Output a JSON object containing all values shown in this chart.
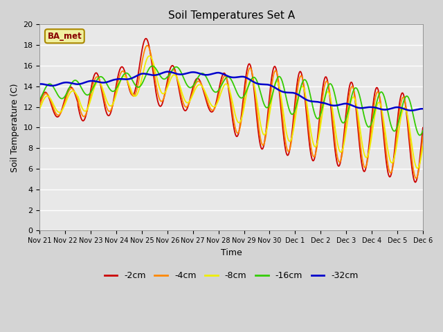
{
  "title": "Soil Temperatures Set A",
  "xlabel": "Time",
  "ylabel": "Soil Temperature (C)",
  "ylim": [
    0,
    20
  ],
  "yticks": [
    0,
    2,
    4,
    6,
    8,
    10,
    12,
    14,
    16,
    18,
    20
  ],
  "fig_bg_color": "#d4d4d4",
  "plot_bg_color": "#e8e8e8",
  "label_box_text": "BA_met",
  "series_colors": {
    "-2cm": "#cc0000",
    "-4cm": "#ff8800",
    "-8cm": "#eeee00",
    "-16cm": "#33cc00",
    "-32cm": "#0000cc"
  },
  "x_tick_labels": [
    "Nov 21",
    "Nov 22",
    "Nov 23",
    "Nov 24",
    "Nov 25",
    "Nov 26",
    "Nov 27",
    "Nov 28",
    "Nov 29",
    "Nov 30",
    "Dec 1",
    "Dec 2",
    "Dec 3",
    "Dec 4",
    "Dec 5",
    "Dec 6"
  ],
  "n_points": 1500
}
